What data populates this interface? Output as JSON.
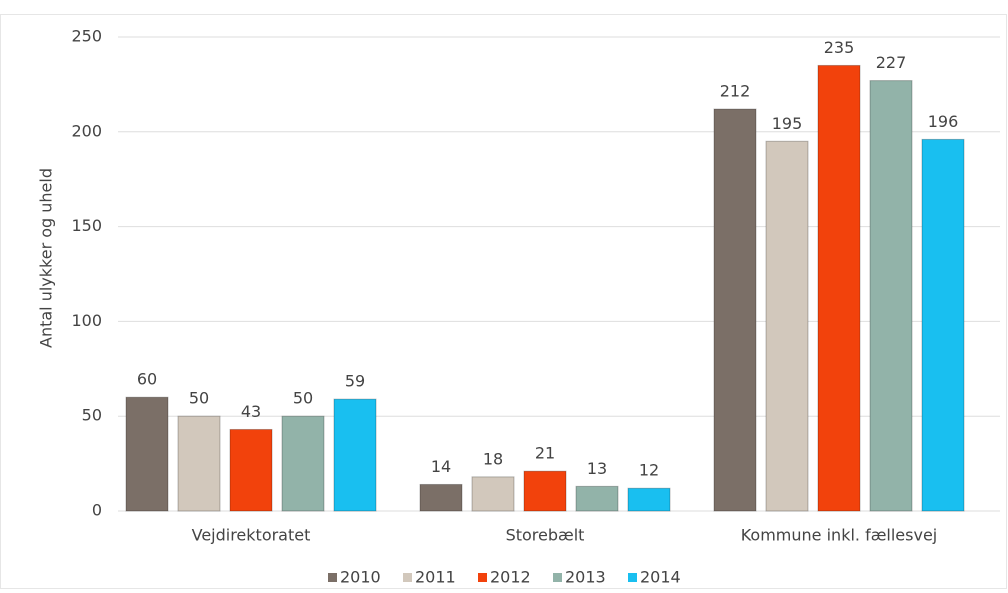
{
  "chart_data": {
    "type": "bar",
    "y_label": "Antal ulykker og uheld",
    "categories": [
      "Vejdirektoratet",
      "Storebælt",
      "Kommune inkl. fællesvej"
    ],
    "series": [
      {
        "name": "2010",
        "color": "#7b6f67",
        "values": [
          60,
          14,
          212
        ]
      },
      {
        "name": "2011",
        "color": "#d2c8bc",
        "values": [
          50,
          18,
          195
        ]
      },
      {
        "name": "2012",
        "color": "#f2420c",
        "values": [
          43,
          21,
          235
        ]
      },
      {
        "name": "2013",
        "color": "#92b3a9",
        "values": [
          50,
          13,
          227
        ]
      },
      {
        "name": "2014",
        "color": "#19bff0",
        "values": [
          59,
          12,
          196
        ]
      }
    ],
    "ylim": [
      0,
      250
    ],
    "yticks": [
      0,
      50,
      100,
      150,
      200,
      250
    ],
    "grid": true,
    "legend": "bottom"
  }
}
